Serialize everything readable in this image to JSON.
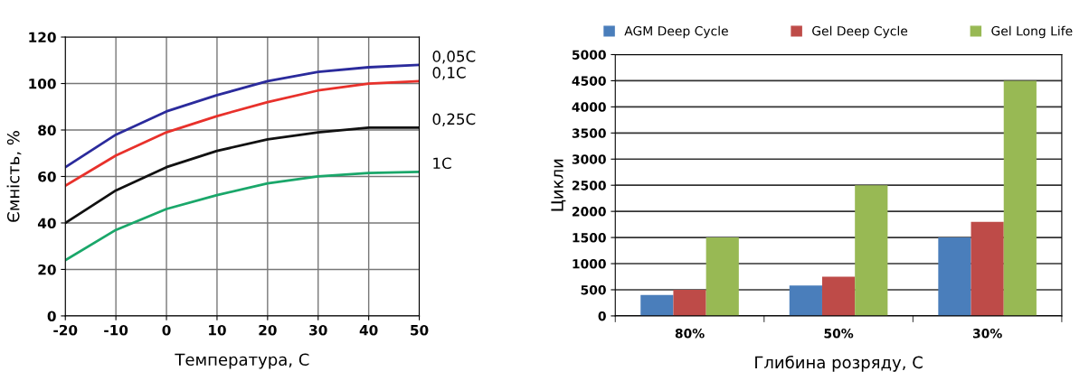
{
  "chart_data": [
    {
      "type": "line",
      "xlabel": "Температура, С",
      "ylabel": "Ємність, %",
      "x": [
        -20,
        -10,
        0,
        10,
        20,
        30,
        40,
        50
      ],
      "series": [
        {
          "name": "0,05C",
          "color": "#2b2b9c",
          "values": [
            64,
            78,
            88,
            95,
            101,
            105,
            107,
            108
          ]
        },
        {
          "name": "0,1C",
          "color": "#e8312b",
          "values": [
            56,
            69,
            79,
            86,
            92,
            97,
            100,
            101
          ]
        },
        {
          "name": "0,25C",
          "color": "#111111",
          "values": [
            40,
            54,
            64,
            71,
            76,
            79,
            81,
            81
          ]
        },
        {
          "name": "1C",
          "color": "#1aa76a",
          "values": [
            24,
            37,
            46,
            52,
            57,
            60,
            61.5,
            62
          ]
        }
      ],
      "xlim": [
        -20,
        50
      ],
      "xticks": [
        -20,
        -10,
        0,
        10,
        20,
        30,
        40,
        50
      ],
      "ylim": [
        0,
        120
      ],
      "yticks": [
        0,
        20,
        40,
        60,
        80,
        100,
        120
      ],
      "grid": true,
      "legend": false
    },
    {
      "type": "bar",
      "xlabel": "Глибина розряду, С",
      "ylabel": "Цикли",
      "categories": [
        "80%",
        "50%",
        "30%"
      ],
      "series": [
        {
          "name": "AGM Deep Cycle",
          "color": "#4a7ebb",
          "values": [
            400,
            580,
            1500
          ]
        },
        {
          "name": "Gel Deep Cycle",
          "color": "#be4b48",
          "values": [
            500,
            750,
            1800
          ]
        },
        {
          "name": "Gel Long Life",
          "color": "#98b954",
          "values": [
            1500,
            2500,
            4500
          ]
        }
      ],
      "ylim": [
        0,
        5000
      ],
      "yticks": [
        0,
        500,
        1000,
        1500,
        2000,
        2500,
        3000,
        3500,
        4000,
        4500,
        5000
      ],
      "grid": "y",
      "legend": "top"
    }
  ]
}
